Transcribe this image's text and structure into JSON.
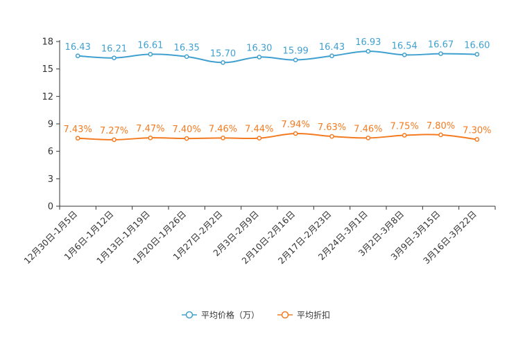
{
  "chart_data": {
    "type": "line",
    "title": "",
    "xlabel": "",
    "ylabel": "",
    "ylim": [
      0,
      18
    ],
    "yticks": [
      0,
      3,
      6,
      9,
      12,
      15,
      18
    ],
    "grid": false,
    "legend_position": "bottom-center",
    "categories": [
      "12月30日-1月5日",
      "1月6日-1月12日",
      "1月13日-1月19日",
      "1月20日-1月26日",
      "1月27日-2月2日",
      "2月3日-2月9日",
      "2月10日-2月16日",
      "2月17日-2月23日",
      "2月24日-3月1日",
      "3月2日-3月8日",
      "3月9日-3月15日",
      "3月16日-3月22日"
    ],
    "series": [
      {
        "name": "平均价格（万）",
        "color": "#3fa0d0",
        "values": [
          16.43,
          16.21,
          16.61,
          16.35,
          15.7,
          16.3,
          15.99,
          16.43,
          16.93,
          16.54,
          16.67,
          16.6
        ],
        "labels": [
          "16.43",
          "16.21",
          "16.61",
          "16.35",
          "15.70",
          "16.30",
          "15.99",
          "16.43",
          "16.93",
          "16.54",
          "16.67",
          "16.60"
        ]
      },
      {
        "name": "平均折扣",
        "color": "#f47a20",
        "values": [
          7.43,
          7.27,
          7.47,
          7.4,
          7.46,
          7.44,
          7.94,
          7.63,
          7.46,
          7.75,
          7.8,
          7.3
        ],
        "labels": [
          "7.43%",
          "7.27%",
          "7.47%",
          "7.40%",
          "7.46%",
          "7.44%",
          "7.94%",
          "7.63%",
          "7.46%",
          "7.75%",
          "7.80%",
          "7.30%"
        ]
      }
    ]
  }
}
